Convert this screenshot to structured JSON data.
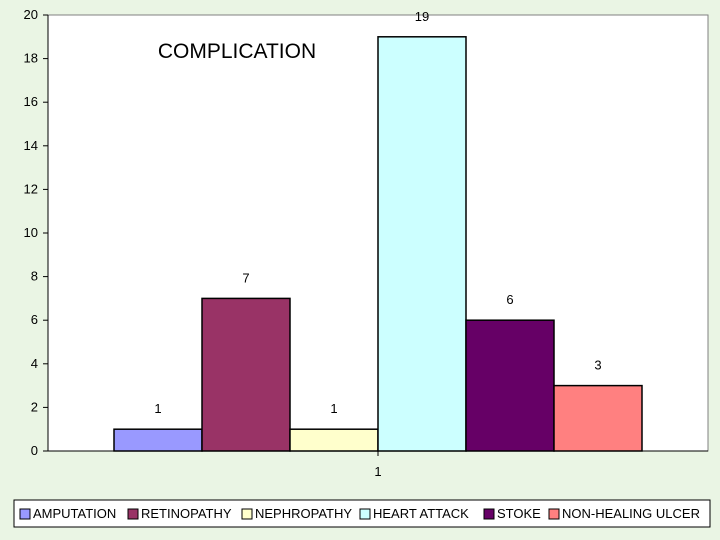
{
  "chart_data": {
    "type": "bar",
    "title": "COMPLICATION",
    "categories": [
      "1"
    ],
    "series": [
      {
        "name": "AMPUTATION",
        "values": [
          1
        ],
        "color": "#9999ff"
      },
      {
        "name": "RETINOPATHY",
        "values": [
          7
        ],
        "color": "#993366"
      },
      {
        "name": "NEPHROPATHY",
        "values": [
          1
        ],
        "color": "#ffffcc"
      },
      {
        "name": "HEART ATTACK",
        "values": [
          19
        ],
        "color": "#ccffff"
      },
      {
        "name": "STOKE",
        "values": [
          6
        ],
        "color": "#660066"
      },
      {
        "name": "NON-HEALING ULCER",
        "values": [
          3
        ],
        "color": "#ff8080"
      }
    ],
    "yticks": [
      "0",
      "2",
      "4",
      "6",
      "8",
      "10",
      "12",
      "14",
      "16",
      "18",
      "20"
    ],
    "ylim": [
      0,
      20
    ],
    "grid": false,
    "legend": "bottom",
    "colors": {
      "plot_background": "#ffffff",
      "page_background": "#eaf5e4"
    }
  }
}
